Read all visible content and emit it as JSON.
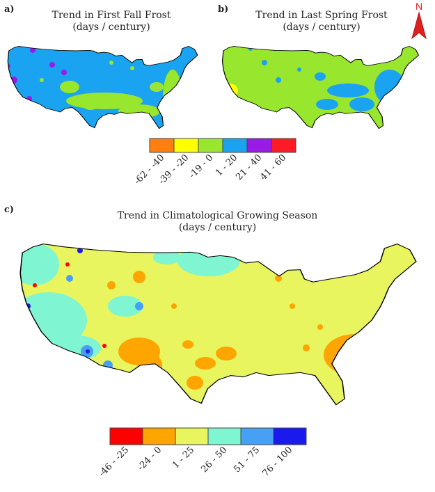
{
  "panels": {
    "a": {
      "letter": "a)",
      "title_line1": "Trend in First Fall Frost",
      "title_line2": "(days / century)"
    },
    "b": {
      "letter": "b)",
      "title_line1": "Trend in Last Spring Frost",
      "title_line2": "(days / century)"
    },
    "c": {
      "letter": "c)",
      "title_line1": "Trend in Climatological Growing Season",
      "title_line2": "(days / century)"
    }
  },
  "north_arrow": {
    "label": "N",
    "color": "#e02020"
  },
  "legend_top": [
    {
      "label": "-62 - -40",
      "color": "#ff7f0e"
    },
    {
      "label": "-39 - -20",
      "color": "#ffff00"
    },
    {
      "label": "-19 - 0",
      "color": "#99e62e"
    },
    {
      "label": "1 - 20",
      "color": "#1aa3f0"
    },
    {
      "label": "21 - 40",
      "color": "#9a1ae6"
    },
    {
      "label": "41 - 60",
      "color": "#ff1a26"
    }
  ],
  "legend_bottom": [
    {
      "label": "-46 - -25",
      "color": "#ff0000"
    },
    {
      "label": "-24 - 0",
      "color": "#ffa500"
    },
    {
      "label": "1 - 25",
      "color": "#e8f55e"
    },
    {
      "label": "26 - 50",
      "color": "#7ff5d2"
    },
    {
      "label": "51 - 75",
      "color": "#48a0f5"
    },
    {
      "label": "76 - 100",
      "color": "#1a1aee"
    }
  ]
}
